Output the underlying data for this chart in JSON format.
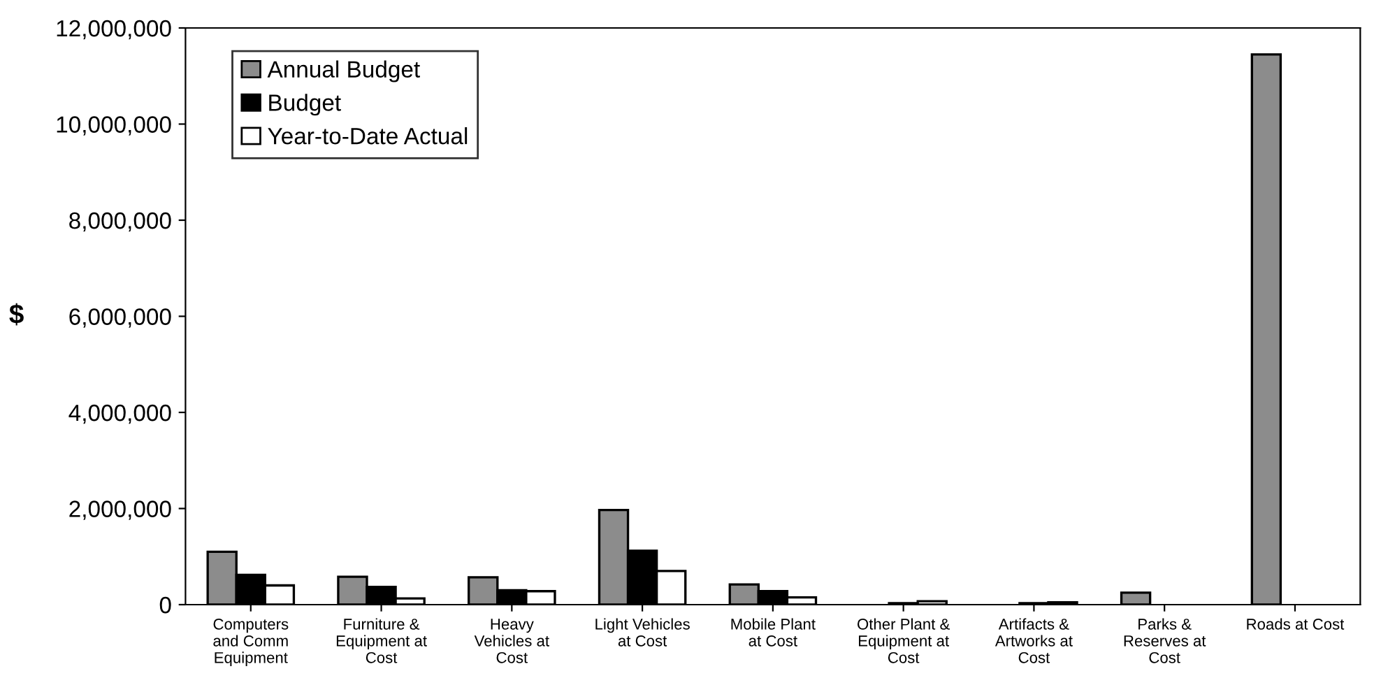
{
  "chart_data": {
    "type": "bar",
    "ylabel": "$",
    "categories": [
      "Computers\nand Comm\nEquipment",
      "Furniture &\nEquipment at\nCost",
      "Heavy\nVehicles at\nCost",
      "Light Vehicles\nat Cost",
      "Mobile Plant\nat Cost",
      "Other Plant &\nEquipment at\nCost",
      "Artifacts &\nArtworks at\nCost",
      "Parks &\nReserves at\nCost",
      "Roads at Cost"
    ],
    "series": [
      {
        "name": "Annual Budget",
        "color": "#8c8c8c",
        "values": [
          1100000,
          580000,
          570000,
          1970000,
          420000,
          null,
          null,
          250000,
          11450000
        ]
      },
      {
        "name": "Budget",
        "color": "#000000",
        "values": [
          620000,
          370000,
          300000,
          1120000,
          280000,
          30000,
          30000,
          null,
          0
        ]
      },
      {
        "name": "Year-to-Date Actual",
        "color": "#ffffff",
        "values": [
          400000,
          130000,
          280000,
          700000,
          150000,
          70000,
          50000,
          0,
          0
        ]
      }
    ],
    "ylim": [
      0,
      12000000
    ],
    "yticks": [
      {
        "value": 0,
        "label": "0"
      },
      {
        "value": 2000000,
        "label": "2,000,000"
      },
      {
        "value": 4000000,
        "label": "4,000,000"
      },
      {
        "value": 6000000,
        "label": "6,000,000"
      },
      {
        "value": 8000000,
        "label": "8,000,000"
      },
      {
        "value": 10000000,
        "label": "10,000,000"
      },
      {
        "value": 12000000,
        "label": "12,000,000"
      }
    ],
    "legend": "top left",
    "grid": false
  }
}
